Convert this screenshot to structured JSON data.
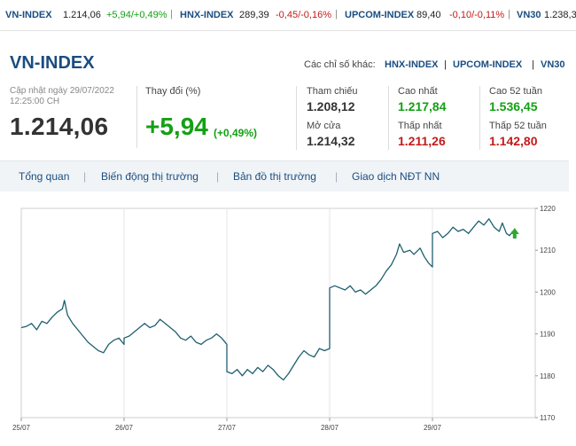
{
  "ticker": [
    {
      "name": "VN-INDEX",
      "value": "1.214,06",
      "change": "+5,94/+0,49%",
      "dir": "up"
    },
    {
      "name": "HNX-INDEX",
      "value": "289,39",
      "change": "-0,45/-0,16%",
      "dir": "down"
    },
    {
      "name": "UPCOM-INDEX",
      "value": "89,40",
      "change": "-0,10/-0,11%",
      "dir": "down"
    },
    {
      "name": "VN30",
      "value": "1.238,3",
      "change": "",
      "dir": "up"
    }
  ],
  "header": {
    "title": "VN-INDEX",
    "others_label": "Các chỉ số khác:",
    "others_links": [
      "HNX-INDEX",
      "UPCOM-INDEX",
      "VN30"
    ],
    "updated_line1": "Cập nhật ngày 29/07/2022",
    "updated_line2": "12:25:00 CH",
    "price": "1.214,06",
    "change_label": "Thay đổi (%)",
    "change_value": "+5,94",
    "change_percent": "(+0,49%)"
  },
  "stats": [
    {
      "label": "Tham chiếu",
      "value": "1.208,12",
      "color": "#333333"
    },
    {
      "label": "Cao nhất",
      "value": "1.217,84",
      "color": "#14a014"
    },
    {
      "label": "Cao 52 tuần",
      "value": "1.536,45",
      "color": "#14a014"
    },
    {
      "label": "Mở cửa",
      "value": "1.214,32",
      "color": "#333333"
    },
    {
      "label": "Thấp nhất",
      "value": "1.211,26",
      "color": "#c41a1a"
    },
    {
      "label": "Thấp 52 tuần",
      "value": "1.142,80",
      "color": "#c41a1a"
    }
  ],
  "tabs": [
    "Tổng quan",
    "Biến động thị trường",
    "Bản đồ thị trường",
    "Giao dịch NĐT NN"
  ],
  "chart_data": {
    "type": "line",
    "title": "",
    "xlabel": "",
    "ylabel": "",
    "ylim": [
      1170,
      1220
    ],
    "yticks": [
      "1220",
      "1210",
      "1200",
      "1190",
      "1180",
      "1170"
    ],
    "categories": [
      "25/07",
      "26/07",
      "27/07",
      "28/07",
      "29/07"
    ],
    "line_color": "#1f5f70",
    "arrow_color": "#2fa82f",
    "grid": true,
    "series": [
      {
        "values": [
          [
            0,
            1191.5
          ],
          [
            0.05,
            1191.8
          ],
          [
            0.1,
            1192.5
          ],
          [
            0.15,
            1191.0
          ],
          [
            0.2,
            1193.0
          ],
          [
            0.25,
            1192.5
          ],
          [
            0.3,
            1194.0
          ],
          [
            0.35,
            1195.2
          ],
          [
            0.4,
            1196.0
          ],
          [
            0.42,
            1198.0
          ],
          [
            0.45,
            1194.5
          ],
          [
            0.5,
            1192.5
          ],
          [
            0.55,
            1191.0
          ],
          [
            0.6,
            1189.5
          ],
          [
            0.65,
            1188.0
          ],
          [
            0.7,
            1187.0
          ],
          [
            0.75,
            1186.0
          ],
          [
            0.8,
            1185.5
          ],
          [
            0.85,
            1187.5
          ],
          [
            0.9,
            1188.5
          ],
          [
            0.95,
            1189.0
          ],
          [
            1.0,
            1187.5
          ],
          [
            1.0,
            1189.0
          ],
          [
            1.05,
            1189.5
          ],
          [
            1.1,
            1190.5
          ],
          [
            1.15,
            1191.5
          ],
          [
            1.2,
            1192.5
          ],
          [
            1.25,
            1191.5
          ],
          [
            1.3,
            1192.0
          ],
          [
            1.35,
            1193.5
          ],
          [
            1.4,
            1192.5
          ],
          [
            1.45,
            1191.5
          ],
          [
            1.5,
            1190.5
          ],
          [
            1.55,
            1189.0
          ],
          [
            1.6,
            1188.5
          ],
          [
            1.65,
            1189.5
          ],
          [
            1.7,
            1188.0
          ],
          [
            1.75,
            1187.5
          ],
          [
            1.8,
            1188.5
          ],
          [
            1.85,
            1189.0
          ],
          [
            1.9,
            1190.0
          ],
          [
            1.95,
            1189.0
          ],
          [
            2.0,
            1187.5
          ],
          [
            2.0,
            1181.0
          ],
          [
            2.05,
            1180.5
          ],
          [
            2.1,
            1181.5
          ],
          [
            2.15,
            1180.0
          ],
          [
            2.2,
            1181.5
          ],
          [
            2.25,
            1180.5
          ],
          [
            2.3,
            1182.0
          ],
          [
            2.35,
            1181.0
          ],
          [
            2.4,
            1182.5
          ],
          [
            2.45,
            1181.5
          ],
          [
            2.5,
            1180.0
          ],
          [
            2.55,
            1179.0
          ],
          [
            2.6,
            1180.5
          ],
          [
            2.65,
            1182.5
          ],
          [
            2.7,
            1184.5
          ],
          [
            2.75,
            1186.0
          ],
          [
            2.8,
            1185.0
          ],
          [
            2.85,
            1184.5
          ],
          [
            2.9,
            1186.5
          ],
          [
            2.95,
            1186.0
          ],
          [
            3.0,
            1186.5
          ],
          [
            3.0,
            1201.0
          ],
          [
            3.05,
            1201.5
          ],
          [
            3.1,
            1201.0
          ],
          [
            3.15,
            1200.5
          ],
          [
            3.2,
            1201.5
          ],
          [
            3.25,
            1200.0
          ],
          [
            3.3,
            1200.5
          ],
          [
            3.35,
            1199.5
          ],
          [
            3.4,
            1200.5
          ],
          [
            3.45,
            1201.5
          ],
          [
            3.5,
            1203.0
          ],
          [
            3.55,
            1205.0
          ],
          [
            3.6,
            1206.5
          ],
          [
            3.65,
            1209.0
          ],
          [
            3.68,
            1211.5
          ],
          [
            3.72,
            1209.5
          ],
          [
            3.78,
            1210.0
          ],
          [
            3.82,
            1209.0
          ],
          [
            3.88,
            1210.5
          ],
          [
            3.92,
            1208.5
          ],
          [
            3.96,
            1207.0
          ],
          [
            4.0,
            1206.0
          ],
          [
            4.0,
            1214.0
          ],
          [
            4.05,
            1214.5
          ],
          [
            4.1,
            1213.0
          ],
          [
            4.15,
            1214.0
          ],
          [
            4.2,
            1215.5
          ],
          [
            4.25,
            1214.5
          ],
          [
            4.3,
            1215.0
          ],
          [
            4.35,
            1214.0
          ],
          [
            4.4,
            1215.5
          ],
          [
            4.45,
            1217.0
          ],
          [
            4.5,
            1216.0
          ],
          [
            4.55,
            1217.5
          ],
          [
            4.6,
            1215.5
          ],
          [
            4.65,
            1214.5
          ],
          [
            4.68,
            1216.5
          ],
          [
            4.72,
            1214.0
          ],
          [
            4.75,
            1213.5
          ],
          [
            4.78,
            1214.5
          ],
          [
            4.8,
            1214.06
          ]
        ]
      }
    ]
  }
}
